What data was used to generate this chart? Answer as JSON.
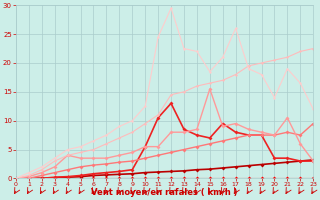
{
  "xlabel": "Vent moyen/en rafales ( km/h )",
  "bg_color": "#cceee8",
  "grid_color": "#aacccc",
  "x_max": 23,
  "y_max": 30,
  "lines": [
    {
      "color": "#ff0000",
      "lw": 0.8,
      "marker_size": 2.0,
      "points": [
        [
          0,
          0
        ],
        [
          1,
          0
        ],
        [
          2,
          0
        ],
        [
          3,
          0
        ],
        [
          4,
          0
        ],
        [
          5,
          0
        ],
        [
          6,
          0
        ],
        [
          7,
          0
        ],
        [
          8,
          0
        ],
        [
          9,
          0
        ],
        [
          10,
          0
        ],
        [
          11,
          0
        ],
        [
          12,
          0
        ],
        [
          13,
          0
        ],
        [
          14,
          0
        ],
        [
          15,
          0
        ],
        [
          16,
          0
        ],
        [
          17,
          0
        ],
        [
          18,
          0
        ],
        [
          19,
          0
        ],
        [
          20,
          0
        ],
        [
          21,
          0
        ],
        [
          22,
          0
        ],
        [
          23,
          0
        ]
      ]
    },
    {
      "color": "#bb0000",
      "lw": 1.2,
      "marker_size": 2.0,
      "points": [
        [
          0,
          0
        ],
        [
          1,
          0
        ],
        [
          2,
          0
        ],
        [
          3,
          0.1
        ],
        [
          4,
          0.2
        ],
        [
          5,
          0.3
        ],
        [
          6,
          0.5
        ],
        [
          7,
          0.6
        ],
        [
          8,
          0.7
        ],
        [
          9,
          0.8
        ],
        [
          10,
          1.0
        ],
        [
          11,
          1.1
        ],
        [
          12,
          1.2
        ],
        [
          13,
          1.3
        ],
        [
          14,
          1.5
        ],
        [
          15,
          1.6
        ],
        [
          16,
          1.8
        ],
        [
          17,
          2.0
        ],
        [
          18,
          2.2
        ],
        [
          19,
          2.4
        ],
        [
          20,
          2.6
        ],
        [
          21,
          2.8
        ],
        [
          22,
          3.0
        ],
        [
          23,
          3.2
        ]
      ]
    },
    {
      "color": "#ee2222",
      "lw": 1.2,
      "marker_size": 2.0,
      "points": [
        [
          0,
          0
        ],
        [
          1,
          0
        ],
        [
          2,
          0
        ],
        [
          3,
          0.2
        ],
        [
          4,
          0.3
        ],
        [
          5,
          0.5
        ],
        [
          6,
          0.8
        ],
        [
          7,
          1.0
        ],
        [
          8,
          1.2
        ],
        [
          9,
          1.5
        ],
        [
          10,
          5.5
        ],
        [
          11,
          10.5
        ],
        [
          12,
          13.0
        ],
        [
          13,
          8.5
        ],
        [
          14,
          7.5
        ],
        [
          15,
          7.0
        ],
        [
          16,
          9.5
        ],
        [
          17,
          8.0
        ],
        [
          18,
          7.5
        ],
        [
          19,
          7.5
        ],
        [
          20,
          3.5
        ],
        [
          21,
          3.5
        ],
        [
          22,
          3.0
        ],
        [
          23,
          3.0
        ]
      ]
    },
    {
      "color": "#ff7777",
      "lw": 1.0,
      "marker_size": 2.0,
      "points": [
        [
          0,
          0
        ],
        [
          1,
          0
        ],
        [
          2,
          0.5
        ],
        [
          3,
          1.0
        ],
        [
          4,
          1.5
        ],
        [
          5,
          2.0
        ],
        [
          6,
          2.3
        ],
        [
          7,
          2.5
        ],
        [
          8,
          2.8
        ],
        [
          9,
          3.0
        ],
        [
          10,
          3.5
        ],
        [
          11,
          4.0
        ],
        [
          12,
          4.5
        ],
        [
          13,
          5.0
        ],
        [
          14,
          5.5
        ],
        [
          15,
          6.0
        ],
        [
          16,
          6.5
        ],
        [
          17,
          7.0
        ],
        [
          18,
          7.5
        ],
        [
          19,
          7.5
        ],
        [
          20,
          7.5
        ],
        [
          21,
          8.0
        ],
        [
          22,
          7.5
        ],
        [
          23,
          9.5
        ]
      ]
    },
    {
      "color": "#ff9999",
      "lw": 1.0,
      "marker_size": 2.0,
      "points": [
        [
          0,
          0
        ],
        [
          1,
          0.3
        ],
        [
          2,
          1.0
        ],
        [
          3,
          2.0
        ],
        [
          4,
          4.0
        ],
        [
          5,
          3.5
        ],
        [
          6,
          3.5
        ],
        [
          7,
          3.5
        ],
        [
          8,
          4.0
        ],
        [
          9,
          4.5
        ],
        [
          10,
          5.5
        ],
        [
          11,
          5.5
        ],
        [
          12,
          8.0
        ],
        [
          13,
          8.0
        ],
        [
          14,
          8.5
        ],
        [
          15,
          15.5
        ],
        [
          16,
          9.0
        ],
        [
          17,
          9.5
        ],
        [
          18,
          8.5
        ],
        [
          19,
          8.0
        ],
        [
          20,
          7.5
        ],
        [
          21,
          10.5
        ],
        [
          22,
          6.0
        ],
        [
          23,
          3.0
        ]
      ]
    },
    {
      "color": "#ffbbbb",
      "lw": 0.8,
      "marker_size": 1.5,
      "points": [
        [
          0,
          0
        ],
        [
          1,
          0.5
        ],
        [
          2,
          1.5
        ],
        [
          3,
          3.0
        ],
        [
          4,
          4.0
        ],
        [
          5,
          4.5
        ],
        [
          6,
          5.0
        ],
        [
          7,
          6.0
        ],
        [
          8,
          7.0
        ],
        [
          9,
          8.0
        ],
        [
          10,
          9.5
        ],
        [
          11,
          11.0
        ],
        [
          12,
          14.5
        ],
        [
          13,
          15.0
        ],
        [
          14,
          16.0
        ],
        [
          15,
          16.5
        ],
        [
          16,
          17.0
        ],
        [
          17,
          18.0
        ],
        [
          18,
          19.5
        ],
        [
          19,
          20.0
        ],
        [
          20,
          20.5
        ],
        [
          21,
          21.0
        ],
        [
          22,
          22.0
        ],
        [
          23,
          22.5
        ]
      ]
    },
    {
      "color": "#ffcccc",
      "lw": 0.8,
      "marker_size": 1.5,
      "points": [
        [
          0,
          0
        ],
        [
          1,
          1.0
        ],
        [
          2,
          2.0
        ],
        [
          3,
          3.5
        ],
        [
          4,
          5.0
        ],
        [
          5,
          5.5
        ],
        [
          6,
          6.5
        ],
        [
          7,
          7.5
        ],
        [
          8,
          9.0
        ],
        [
          9,
          10.0
        ],
        [
          10,
          12.5
        ],
        [
          11,
          24.5
        ],
        [
          12,
          29.5
        ],
        [
          13,
          22.5
        ],
        [
          14,
          22.0
        ],
        [
          15,
          18.5
        ],
        [
          16,
          21.0
        ],
        [
          17,
          26.0
        ],
        [
          18,
          19.0
        ],
        [
          19,
          18.0
        ],
        [
          20,
          14.0
        ],
        [
          21,
          19.0
        ],
        [
          22,
          16.5
        ],
        [
          23,
          12.0
        ]
      ]
    }
  ],
  "tick_color": "#cc0000",
  "label_color": "#cc0000",
  "arrow_color": "#cc0000",
  "yticks": [
    0,
    5,
    10,
    15,
    20,
    25,
    30
  ],
  "xticks": [
    0,
    1,
    2,
    3,
    4,
    5,
    6,
    7,
    8,
    9,
    10,
    11,
    12,
    13,
    14,
    15,
    16,
    17,
    18,
    19,
    20,
    21,
    22,
    23
  ],
  "xlabel_fontsize": 6,
  "tick_labelsize": 4.5
}
